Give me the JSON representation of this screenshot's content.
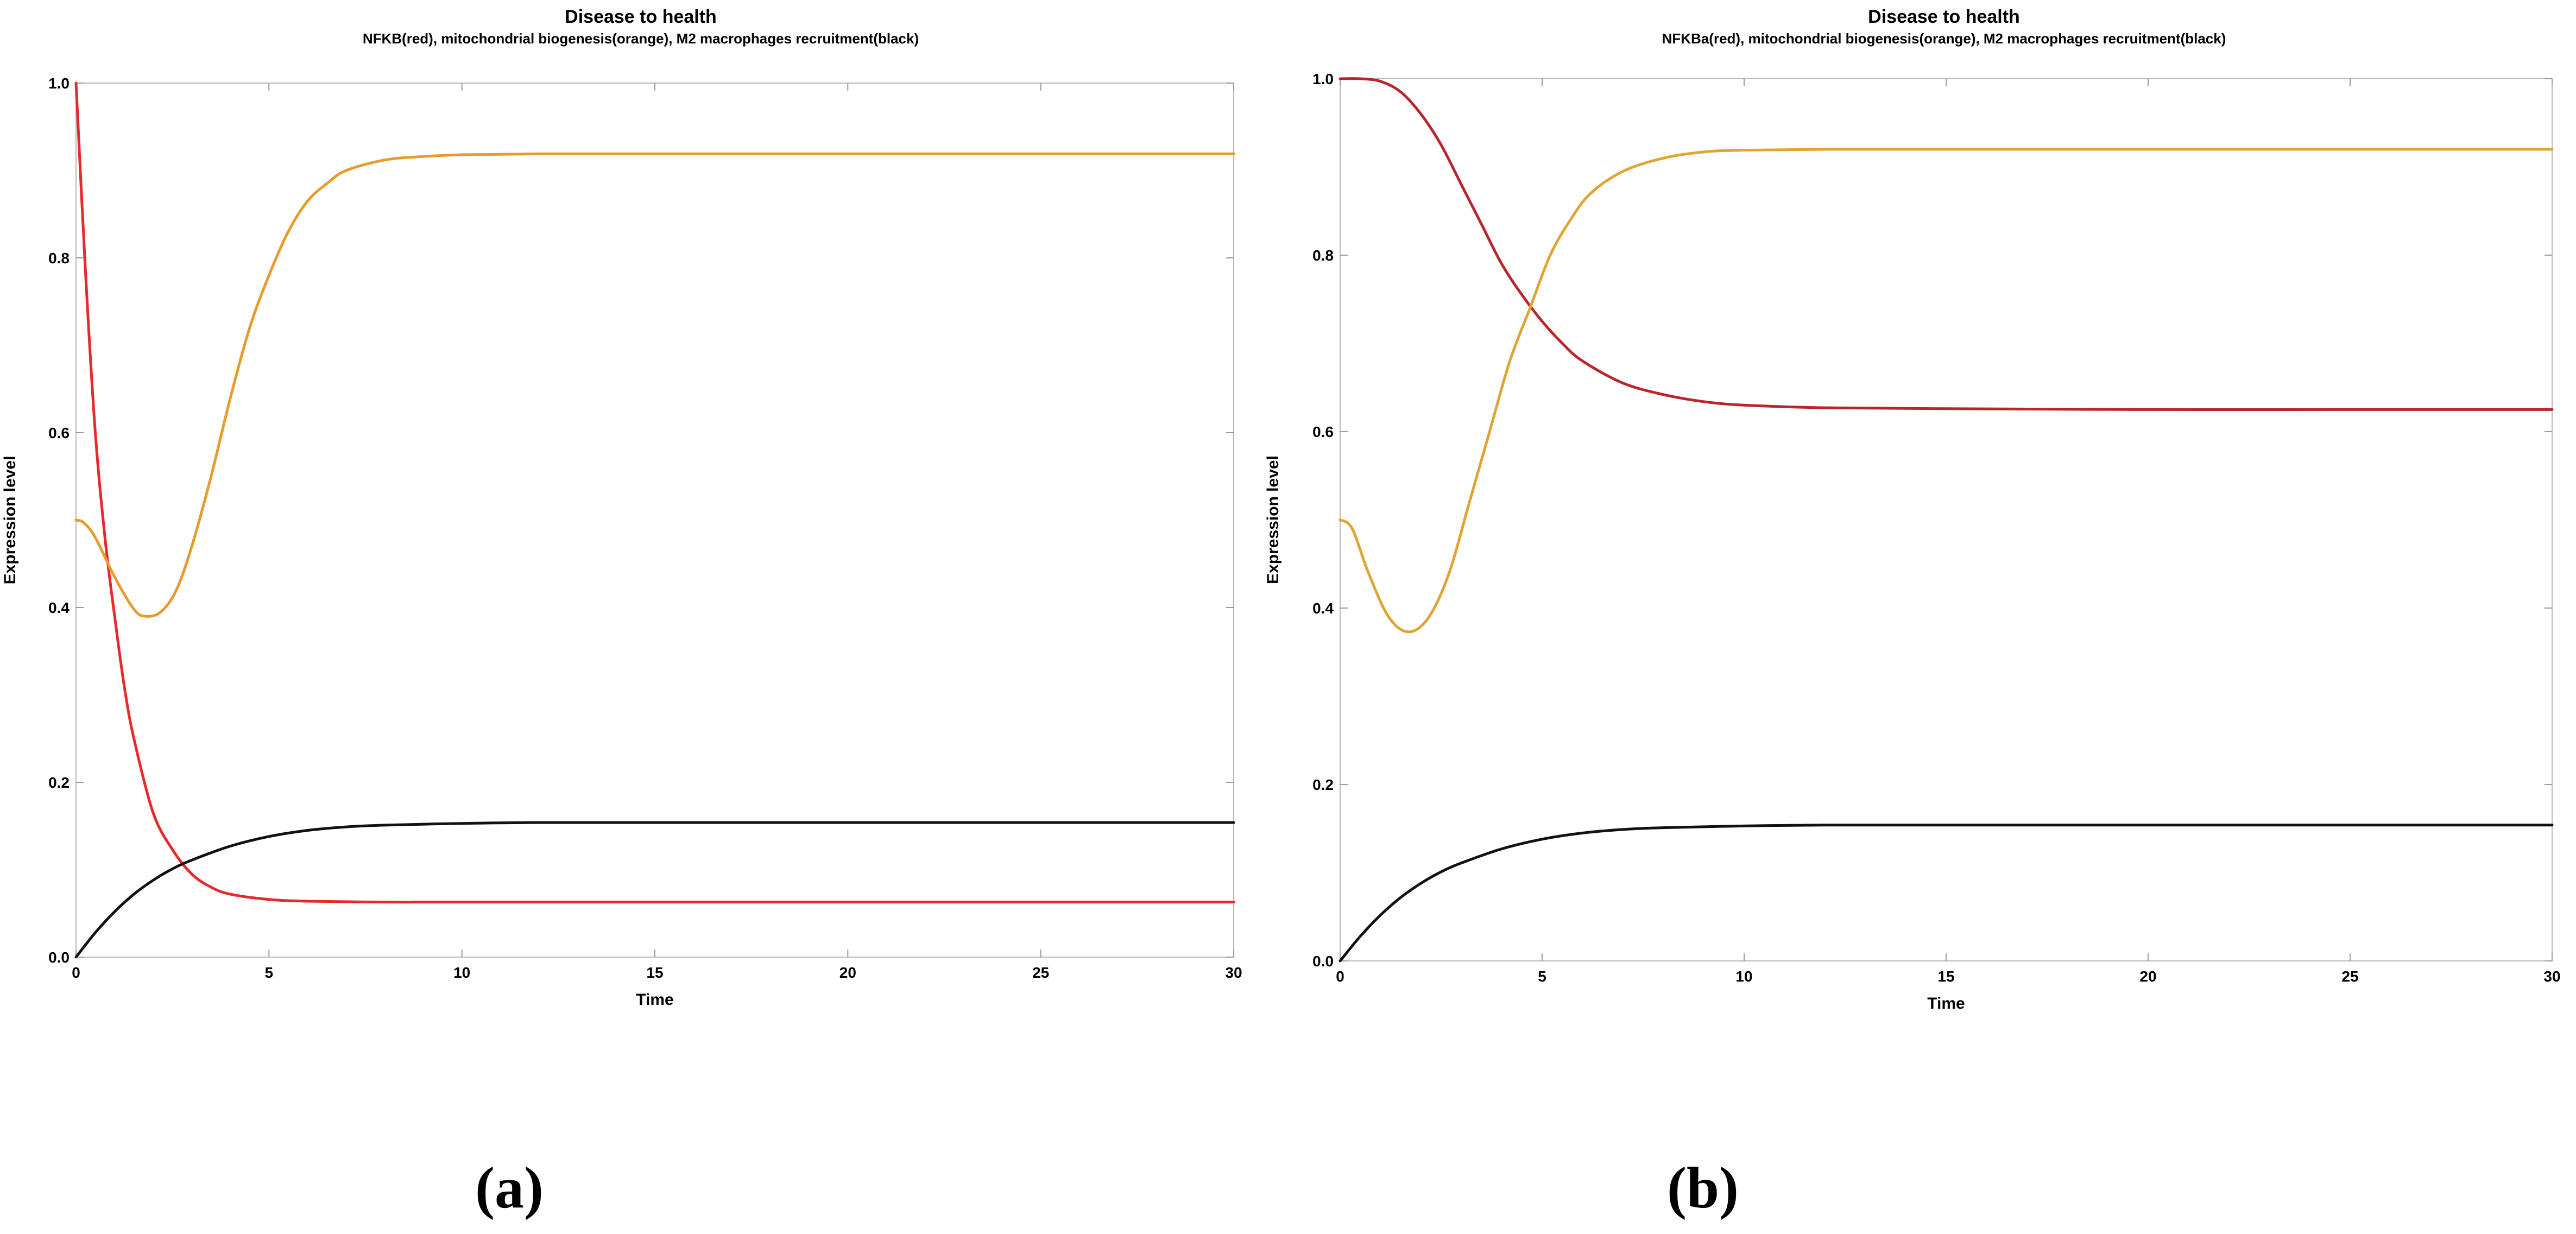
{
  "chart_data": [
    {
      "type": "line",
      "title": "Disease to health",
      "subtitle": "NFKB(red), mitochondrial biogenesis(orange), M2 macrophages recruitment(black)",
      "xlabel": "Time",
      "ylabel": "Expression level",
      "xlim": [
        0,
        30
      ],
      "ylim": [
        0,
        1
      ],
      "xticks": [
        0,
        5,
        10,
        15,
        20,
        25,
        30
      ],
      "yticks": [
        0.0,
        0.2,
        0.4,
        0.6,
        0.8,
        1.0
      ],
      "xtick_labels": [
        "0",
        "5",
        "10",
        "15",
        "20",
        "25",
        "30"
      ],
      "ytick_labels": [
        "0.0",
        "0.2",
        "0.4",
        "0.6",
        "0.8",
        "1.0"
      ],
      "grid": false,
      "series": [
        {
          "color": "#e8292b",
          "x": [
            0,
            0.25,
            0.5,
            0.75,
            1,
            1.25,
            1.5,
            2,
            2.5,
            3,
            3.5,
            4,
            5,
            6,
            8,
            10,
            15,
            20,
            25,
            30
          ],
          "values": [
            1.0,
            0.78,
            0.6,
            0.48,
            0.39,
            0.31,
            0.25,
            0.165,
            0.123,
            0.095,
            0.08,
            0.072,
            0.066,
            0.064,
            0.063,
            0.063,
            0.063,
            0.063,
            0.063,
            0.063
          ]
        },
        {
          "color": "#e89a2c",
          "x": [
            0,
            0.2,
            0.5,
            1,
            1.5,
            1.8,
            2.2,
            2.6,
            3,
            3.5,
            4,
            4.5,
            5,
            5.5,
            6,
            6.5,
            7,
            8,
            9,
            10,
            12,
            15,
            20,
            25,
            30
          ],
          "values": [
            0.5,
            0.497,
            0.48,
            0.435,
            0.398,
            0.39,
            0.395,
            0.42,
            0.47,
            0.55,
            0.64,
            0.72,
            0.78,
            0.83,
            0.865,
            0.885,
            0.9,
            0.912,
            0.916,
            0.918,
            0.919,
            0.919,
            0.919,
            0.919,
            0.919
          ]
        },
        {
          "color": "#111111",
          "x": [
            0,
            0.5,
            1,
            1.5,
            2,
            2.5,
            3,
            4,
            5,
            6,
            7,
            8,
            10,
            12,
            15,
            20,
            25,
            30
          ],
          "values": [
            0.0,
            0.028,
            0.052,
            0.072,
            0.088,
            0.101,
            0.111,
            0.127,
            0.138,
            0.145,
            0.149,
            0.151,
            0.153,
            0.154,
            0.154,
            0.154,
            0.154,
            0.154
          ]
        }
      ]
    },
    {
      "type": "line",
      "title": "Disease to health",
      "subtitle": "NFKBa(red), mitochondrial biogenesis(orange), M2 macrophages recruitment(black)",
      "xlabel": "Time",
      "ylabel": "Expression level",
      "xlim": [
        0,
        30
      ],
      "ylim": [
        0,
        1
      ],
      "xticks": [
        0,
        5,
        10,
        15,
        20,
        25,
        30
      ],
      "yticks": [
        0.0,
        0.2,
        0.4,
        0.6,
        0.8,
        1.0
      ],
      "xtick_labels": [
        "0",
        "5",
        "10",
        "15",
        "20",
        "25",
        "30"
      ],
      "ytick_labels": [
        "0.0",
        "0.2",
        "0.4",
        "0.6",
        "0.8",
        "1.0"
      ],
      "grid": false,
      "series": [
        {
          "color": "#b8252a",
          "x": [
            0,
            0.5,
            1,
            1.5,
            2,
            2.5,
            3,
            3.5,
            4,
            4.5,
            5,
            5.5,
            6,
            7,
            8,
            9,
            10,
            12,
            15,
            20,
            25,
            30
          ],
          "values": [
            1.0,
            1.0,
            0.997,
            0.985,
            0.96,
            0.925,
            0.88,
            0.835,
            0.79,
            0.755,
            0.725,
            0.7,
            0.68,
            0.655,
            0.642,
            0.634,
            0.63,
            0.627,
            0.626,
            0.625,
            0.625,
            0.625
          ]
        },
        {
          "color": "#e0a434",
          "x": [
            0,
            0.3,
            0.7,
            1.2,
            1.7,
            2.2,
            2.7,
            3.2,
            3.7,
            4.2,
            4.7,
            5.2,
            5.7,
            6.2,
            7,
            8,
            9,
            10,
            12,
            15,
            20,
            25,
            30
          ],
          "values": [
            0.5,
            0.49,
            0.44,
            0.39,
            0.373,
            0.39,
            0.44,
            0.52,
            0.6,
            0.68,
            0.74,
            0.8,
            0.84,
            0.87,
            0.895,
            0.91,
            0.917,
            0.919,
            0.92,
            0.92,
            0.92,
            0.92,
            0.92
          ]
        },
        {
          "color": "#111111",
          "x": [
            0,
            0.5,
            1,
            1.5,
            2,
            2.5,
            3,
            4,
            5,
            6,
            7,
            8,
            10,
            12,
            15,
            20,
            25,
            30
          ],
          "values": [
            0.0,
            0.028,
            0.052,
            0.072,
            0.088,
            0.101,
            0.111,
            0.127,
            0.138,
            0.145,
            0.149,
            0.151,
            0.153,
            0.154,
            0.154,
            0.154,
            0.154,
            0.154
          ]
        }
      ]
    }
  ],
  "panel_labels": [
    {
      "open": "(",
      "letter": "a",
      "close": ")"
    },
    {
      "open": "(",
      "letter": "b",
      "close": ")"
    }
  ]
}
